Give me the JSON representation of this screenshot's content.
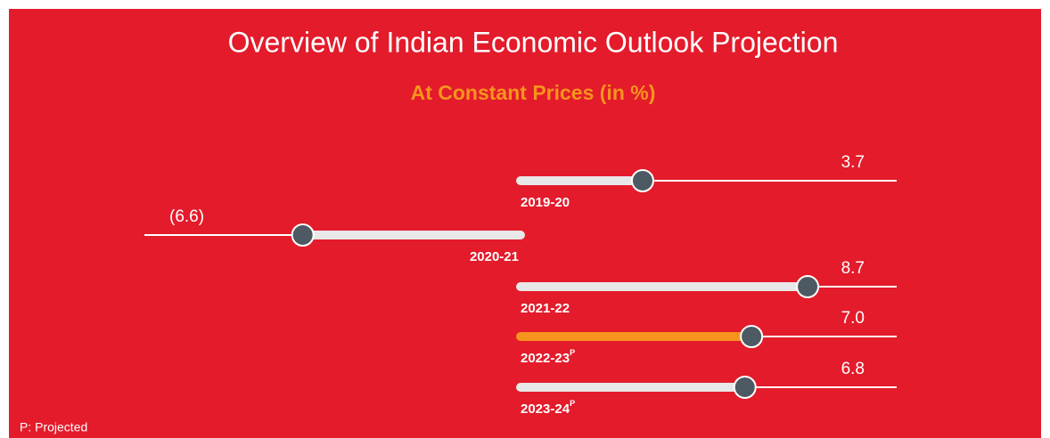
{
  "chart_data": {
    "type": "lollipop",
    "title": "Overview of Indian Economic Outlook Projection",
    "subtitle": "At Constant Prices (in %)",
    "categories": [
      "2019-20",
      "2020-21",
      "2021-22",
      "2022-23",
      "2023-24"
    ],
    "category_notes": [
      null,
      null,
      null,
      "P",
      "P"
    ],
    "values": [
      3.7,
      -6.6,
      8.7,
      7.0,
      6.8
    ],
    "value_labels": [
      "3.7",
      "(6.6)",
      "8.7",
      "7.0",
      "6.8"
    ],
    "colors": [
      "#e8e8e8",
      "#e8e8e8",
      "#e8e8e8",
      "#f7941d",
      "#e8e8e8"
    ],
    "marker_color": "#4d5a63",
    "xlim": [
      -11.4,
      11.4
    ],
    "footnote": "P: Projected"
  }
}
